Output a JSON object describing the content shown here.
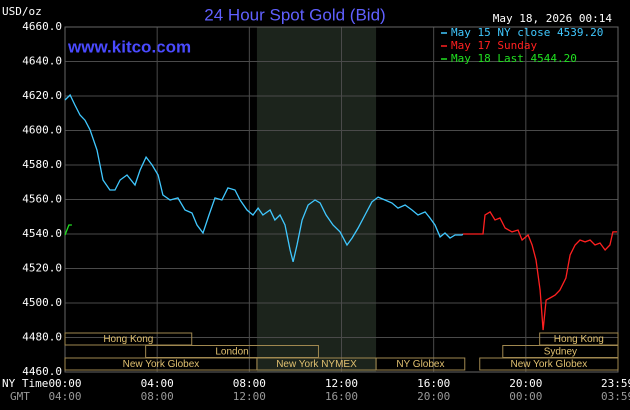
{
  "chart_data": {
    "type": "line",
    "title": "24 Hour Spot Gold (Bid)",
    "site": "www.kitco.com",
    "unit_label": "USD/oz",
    "timestamp": "May 18, 2026 00:14",
    "x_row_label": "NY Time",
    "x2_row_label": "GMT",
    "xlim": [
      0,
      24
    ],
    "ylim": [
      4460,
      4660
    ],
    "yticks": [
      {
        "value": 4460,
        "label": "4460.0"
      },
      {
        "value": 4480,
        "label": "4480.0"
      },
      {
        "value": 4500,
        "label": "4500.0"
      },
      {
        "value": 4520,
        "label": "4520.0"
      },
      {
        "value": 4540,
        "label": "4540.0"
      },
      {
        "value": 4560,
        "label": "4560.0"
      },
      {
        "value": 4580,
        "label": "4580.0"
      },
      {
        "value": 4600,
        "label": "4600.0"
      },
      {
        "value": 4620,
        "label": "4620.0"
      },
      {
        "value": 4640,
        "label": "4640.0"
      },
      {
        "value": 4660,
        "label": "4660.0"
      }
    ],
    "xticks": [
      {
        "value": 0,
        "label": "00:00"
      },
      {
        "value": 4,
        "label": "04:00"
      },
      {
        "value": 8,
        "label": "08:00"
      },
      {
        "value": 12,
        "label": "12:00"
      },
      {
        "value": 16,
        "label": "16:00"
      },
      {
        "value": 20,
        "label": "20:00"
      },
      {
        "value": 23.98,
        "label": "23:59"
      }
    ],
    "x2_labels": [
      "04:00",
      "08:00",
      "12:00",
      "16:00",
      "20:00",
      "00:00",
      "03:59"
    ],
    "grid": true,
    "shade": [
      8.33,
      13.5
    ],
    "sessions": [
      {
        "name": "Hong Kong",
        "start": 0,
        "end": 5.5,
        "row": 0
      },
      {
        "name": "London",
        "start": 3.5,
        "end": 11.0,
        "row": 1
      },
      {
        "name": "New York Globex",
        "start": 0,
        "end": 8.33,
        "row": 2
      },
      {
        "name": "New York NYMEX",
        "start": 8.33,
        "end": 13.5,
        "row": 2
      },
      {
        "name": "NY Globex",
        "start": 13.5,
        "end": 17.35,
        "row": 2
      },
      {
        "name": "Hong Kong",
        "start": 20.6,
        "end": 24,
        "row": 0
      },
      {
        "name": "Sydney",
        "start": 19.0,
        "end": 24,
        "row": 1
      },
      {
        "name": "New York Globex",
        "start": 18.0,
        "end": 24,
        "row": 2
      }
    ],
    "series": [
      {
        "name": "May 15 NY close 4539.20",
        "color": "#40c8ff",
        "x": [
          0,
          0.22,
          0.43,
          0.65,
          0.87,
          1.09,
          1.39,
          1.65,
          1.95,
          2.17,
          2.39,
          2.69,
          3.04,
          3.26,
          3.52,
          3.78,
          4.04,
          4.25,
          4.56,
          4.9,
          5.21,
          5.51,
          5.73,
          5.99,
          6.25,
          6.51,
          6.81,
          7.07,
          7.38,
          7.6,
          7.9,
          8.16,
          8.38,
          8.59,
          8.9,
          9.11,
          9.33,
          9.55,
          9.77,
          9.9,
          10.07,
          10.29,
          10.55,
          10.85,
          11.07,
          11.33,
          11.63,
          11.94,
          12.24,
          12.46,
          12.72,
          13.02,
          13.32,
          13.59,
          13.89,
          14.19,
          14.45,
          14.76,
          15.06,
          15.32,
          15.63,
          15.84,
          16.06,
          16.28,
          16.49,
          16.71,
          16.93,
          17.23,
          17.27
        ],
        "values": [
          4617.7,
          4620.6,
          4614.8,
          4609,
          4606,
          4600.3,
          4588.7,
          4571.3,
          4565.5,
          4565.5,
          4571.3,
          4574.2,
          4568.4,
          4577.1,
          4584.6,
          4580,
          4574.2,
          4562.6,
          4559.7,
          4560.9,
          4553.9,
          4552.2,
          4545.2,
          4540.6,
          4551,
          4560.9,
          4559.7,
          4566.7,
          4565.5,
          4559.7,
          4553.9,
          4551,
          4555,
          4551,
          4553.9,
          4548.1,
          4551,
          4545.2,
          4530.7,
          4523.8,
          4533.6,
          4548.1,
          4556.8,
          4559.7,
          4558,
          4551,
          4545.2,
          4541.2,
          4533.6,
          4537.7,
          4543.5,
          4551,
          4558.6,
          4561.4,
          4559.7,
          4558,
          4555,
          4556.8,
          4553.9,
          4551,
          4552.8,
          4549.3,
          4545.2,
          4538.3,
          4540.6,
          4537.7,
          4539.4,
          4539.4,
          4540
        ]
      },
      {
        "name": "May 17 Sunday",
        "color": "#ff2020",
        "x": [
          17.27,
          18.14,
          18.23,
          18.45,
          18.66,
          18.88,
          19.1,
          19.4,
          19.66,
          19.84,
          20.1,
          20.27,
          20.44,
          20.62,
          20.75,
          20.88,
          21.05,
          21.27,
          21.48,
          21.74,
          21.92,
          22.14,
          22.35,
          22.57,
          22.79,
          23.0,
          23.22,
          23.44,
          23.65,
          23.78,
          23.96
        ],
        "values": [
          4540,
          4540,
          4551,
          4552.8,
          4548.1,
          4549.3,
          4543.5,
          4541.2,
          4542.3,
          4536.5,
          4539.4,
          4533.6,
          4525,
          4507.5,
          4484.3,
          4501.7,
          4502.9,
          4504.6,
          4507.5,
          4514.5,
          4527.8,
          4533.6,
          4536.5,
          4535.4,
          4536.5,
          4533.6,
          4534.8,
          4530.7,
          4533.6,
          4541.2,
          4541.2
        ]
      },
      {
        "name": "May 18 Last 4544.20",
        "color": "#20e020",
        "x": [
          0,
          0.17,
          0.3
        ],
        "values": [
          4539.4,
          4545.2,
          4545.2
        ]
      }
    ]
  }
}
